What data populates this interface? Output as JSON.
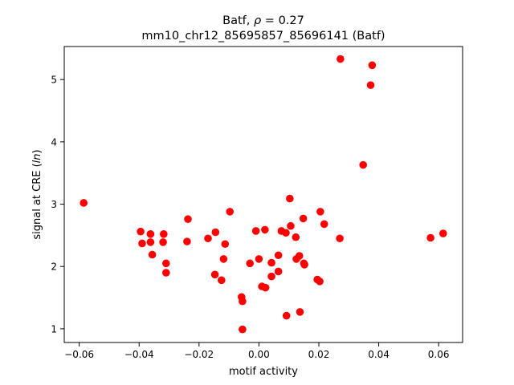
{
  "chart_data": {
    "type": "scatter",
    "title_line1_prefix": "Batf, ",
    "title_line1_rho": "ρ",
    "title_line1_suffix": " = 0.27",
    "title_line2": "mm10_chr12_85695857_85696141 (Batf)",
    "xlabel": "motif activity",
    "ylabel_prefix": "signal at CRE (",
    "ylabel_italic": "ln",
    "ylabel_suffix": ")",
    "xlim": [
      -0.065,
      0.068
    ],
    "ylim": [
      0.78,
      5.53
    ],
    "xticks": [
      -0.06,
      -0.04,
      -0.02,
      0.0,
      0.02,
      0.04,
      0.06
    ],
    "xtick_labels": [
      "−0.06",
      "−0.04",
      "−0.02",
      "0.00",
      "0.02",
      "0.04",
      "0.06"
    ],
    "yticks": [
      1,
      2,
      3,
      4,
      5
    ],
    "ytick_labels": [
      "1",
      "2",
      "3",
      "4",
      "5"
    ],
    "grid": false,
    "marker_color": "#ff0000",
    "points": [
      {
        "x": -0.0585,
        "y": 3.02
      },
      {
        "x": -0.0395,
        "y": 2.56
      },
      {
        "x": -0.039,
        "y": 2.37
      },
      {
        "x": -0.0362,
        "y": 2.52
      },
      {
        "x": -0.0362,
        "y": 2.39
      },
      {
        "x": -0.0356,
        "y": 2.19
      },
      {
        "x": -0.0318,
        "y": 2.52
      },
      {
        "x": -0.032,
        "y": 2.39
      },
      {
        "x": -0.031,
        "y": 2.05
      },
      {
        "x": -0.031,
        "y": 1.9
      },
      {
        "x": -0.024,
        "y": 2.4
      },
      {
        "x": -0.0237,
        "y": 2.76
      },
      {
        "x": -0.017,
        "y": 2.45
      },
      {
        "x": -0.0145,
        "y": 2.55
      },
      {
        "x": -0.0147,
        "y": 1.87
      },
      {
        "x": -0.0125,
        "y": 1.78
      },
      {
        "x": -0.0118,
        "y": 2.12
      },
      {
        "x": -0.0113,
        "y": 2.36
      },
      {
        "x": -0.0097,
        "y": 2.88
      },
      {
        "x": -0.0058,
        "y": 1.51
      },
      {
        "x": -0.0055,
        "y": 1.44
      },
      {
        "x": -0.0055,
        "y": 0.99
      },
      {
        "x": -0.003,
        "y": 2.05
      },
      {
        "x": -0.001,
        "y": 2.57
      },
      {
        "x": 0.0,
        "y": 2.12
      },
      {
        "x": 0.001,
        "y": 1.68
      },
      {
        "x": 0.002,
        "y": 2.59
      },
      {
        "x": 0.0022,
        "y": 1.66
      },
      {
        "x": 0.0042,
        "y": 2.06
      },
      {
        "x": 0.0042,
        "y": 1.84
      },
      {
        "x": 0.0065,
        "y": 2.18
      },
      {
        "x": 0.0065,
        "y": 1.92
      },
      {
        "x": 0.0075,
        "y": 2.57
      },
      {
        "x": 0.009,
        "y": 2.54
      },
      {
        "x": 0.0092,
        "y": 1.21
      },
      {
        "x": 0.0103,
        "y": 3.09
      },
      {
        "x": 0.0106,
        "y": 2.65
      },
      {
        "x": 0.0123,
        "y": 2.47
      },
      {
        "x": 0.0125,
        "y": 2.12
      },
      {
        "x": 0.0135,
        "y": 2.17
      },
      {
        "x": 0.0137,
        "y": 1.27
      },
      {
        "x": 0.0148,
        "y": 2.77
      },
      {
        "x": 0.015,
        "y": 2.05
      },
      {
        "x": 0.0152,
        "y": 2.03
      },
      {
        "x": 0.0195,
        "y": 1.79
      },
      {
        "x": 0.0203,
        "y": 1.76
      },
      {
        "x": 0.0205,
        "y": 2.88
      },
      {
        "x": 0.0218,
        "y": 2.68
      },
      {
        "x": 0.027,
        "y": 2.45
      },
      {
        "x": 0.0272,
        "y": 5.33
      },
      {
        "x": 0.0348,
        "y": 3.63
      },
      {
        "x": 0.0373,
        "y": 4.91
      },
      {
        "x": 0.0378,
        "y": 5.23
      },
      {
        "x": 0.0573,
        "y": 2.46
      },
      {
        "x": 0.0615,
        "y": 2.53
      }
    ]
  }
}
